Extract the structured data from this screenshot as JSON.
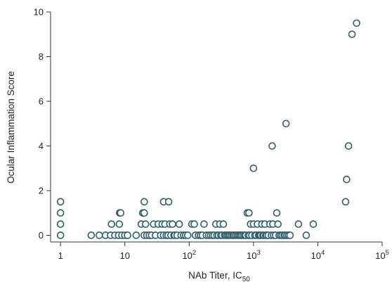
{
  "chart_data": {
    "type": "scatter",
    "title": "",
    "xlabel": "NAb Titer, IC",
    "xlabel_sub": "50",
    "ylabel": "Ocular Inflammation Score",
    "xscale": "log",
    "xlim": [
      0.7,
      100000
    ],
    "ylim": [
      -0.3,
      10
    ],
    "grid": false,
    "legend": "none",
    "marker_color": "#2e5f6b",
    "x_ticks": [
      {
        "value": 1,
        "label": "1"
      },
      {
        "value": 10,
        "label": "10"
      },
      {
        "value": 100,
        "base": "10",
        "exp": "2"
      },
      {
        "value": 1000,
        "base": "10",
        "exp": "3"
      },
      {
        "value": 10000,
        "base": "10",
        "exp": "4"
      },
      {
        "value": 100000,
        "base": "10",
        "exp": "5"
      }
    ],
    "y_ticks": [
      0,
      2,
      4,
      6,
      8,
      10
    ],
    "points": [
      {
        "x": 1,
        "y": 0
      },
      {
        "x": 1,
        "y": 0.5
      },
      {
        "x": 1,
        "y": 1
      },
      {
        "x": 1,
        "y": 1.5
      },
      {
        "x": 3,
        "y": 0
      },
      {
        "x": 4,
        "y": 0
      },
      {
        "x": 5,
        "y": 0
      },
      {
        "x": 6,
        "y": 0
      },
      {
        "x": 6.2,
        "y": 0.5
      },
      {
        "x": 7,
        "y": 0
      },
      {
        "x": 8,
        "y": 0
      },
      {
        "x": 8.2,
        "y": 0.5
      },
      {
        "x": 8.3,
        "y": 1
      },
      {
        "x": 8.6,
        "y": 1
      },
      {
        "x": 9,
        "y": 0
      },
      {
        "x": 10,
        "y": 0
      },
      {
        "x": 11,
        "y": 0
      },
      {
        "x": 15,
        "y": 0
      },
      {
        "x": 18,
        "y": 0.5
      },
      {
        "x": 19,
        "y": 1
      },
      {
        "x": 20,
        "y": 1
      },
      {
        "x": 20,
        "y": 1.5
      },
      {
        "x": 20,
        "y": 0
      },
      {
        "x": 21,
        "y": 0.5
      },
      {
        "x": 22,
        "y": 0
      },
      {
        "x": 24,
        "y": 0
      },
      {
        "x": 26,
        "y": 0
      },
      {
        "x": 28,
        "y": 0.5
      },
      {
        "x": 30,
        "y": 0
      },
      {
        "x": 33,
        "y": 0.5
      },
      {
        "x": 36,
        "y": 0
      },
      {
        "x": 38,
        "y": 0.5
      },
      {
        "x": 40,
        "y": 1.5
      },
      {
        "x": 40,
        "y": 0
      },
      {
        "x": 42,
        "y": 0.5
      },
      {
        "x": 44,
        "y": 0
      },
      {
        "x": 47,
        "y": 0
      },
      {
        "x": 48,
        "y": 1.5
      },
      {
        "x": 50,
        "y": 0.5
      },
      {
        "x": 52,
        "y": 0
      },
      {
        "x": 55,
        "y": 0.5
      },
      {
        "x": 58,
        "y": 0
      },
      {
        "x": 60,
        "y": 0
      },
      {
        "x": 65,
        "y": 0
      },
      {
        "x": 70,
        "y": 0.5
      },
      {
        "x": 75,
        "y": 0
      },
      {
        "x": 82,
        "y": 0
      },
      {
        "x": 88,
        "y": 0
      },
      {
        "x": 95,
        "y": 0
      },
      {
        "x": 110,
        "y": 0.5
      },
      {
        "x": 120,
        "y": 0.5
      },
      {
        "x": 125,
        "y": 0
      },
      {
        "x": 140,
        "y": 0
      },
      {
        "x": 150,
        "y": 0
      },
      {
        "x": 160,
        "y": 0
      },
      {
        "x": 170,
        "y": 0.5
      },
      {
        "x": 185,
        "y": 0
      },
      {
        "x": 200,
        "y": 0
      },
      {
        "x": 215,
        "y": 0
      },
      {
        "x": 230,
        "y": 0
      },
      {
        "x": 245,
        "y": 0
      },
      {
        "x": 260,
        "y": 0.5
      },
      {
        "x": 270,
        "y": 0
      },
      {
        "x": 285,
        "y": 0
      },
      {
        "x": 300,
        "y": 0.5
      },
      {
        "x": 310,
        "y": 0
      },
      {
        "x": 325,
        "y": 0
      },
      {
        "x": 340,
        "y": 0.5
      },
      {
        "x": 355,
        "y": 0
      },
      {
        "x": 370,
        "y": 0
      },
      {
        "x": 390,
        "y": 0
      },
      {
        "x": 410,
        "y": 0
      },
      {
        "x": 430,
        "y": 0
      },
      {
        "x": 455,
        "y": 0
      },
      {
        "x": 480,
        "y": 0
      },
      {
        "x": 500,
        "y": 0
      },
      {
        "x": 530,
        "y": 0
      },
      {
        "x": 560,
        "y": 0
      },
      {
        "x": 590,
        "y": 0
      },
      {
        "x": 620,
        "y": 0
      },
      {
        "x": 650,
        "y": 0
      },
      {
        "x": 690,
        "y": 0
      },
      {
        "x": 730,
        "y": 0
      },
      {
        "x": 760,
        "y": 0
      },
      {
        "x": 800,
        "y": 1
      },
      {
        "x": 830,
        "y": 0
      },
      {
        "x": 850,
        "y": 1
      },
      {
        "x": 870,
        "y": 0
      },
      {
        "x": 900,
        "y": 0.5
      },
      {
        "x": 940,
        "y": 0
      },
      {
        "x": 1000,
        "y": 3
      },
      {
        "x": 1000,
        "y": 0.5
      },
      {
        "x": 1050,
        "y": 0
      },
      {
        "x": 1100,
        "y": 0
      },
      {
        "x": 1150,
        "y": 0.5
      },
      {
        "x": 1200,
        "y": 0
      },
      {
        "x": 1250,
        "y": 0
      },
      {
        "x": 1300,
        "y": 0
      },
      {
        "x": 1350,
        "y": 0.5
      },
      {
        "x": 1400,
        "y": 0
      },
      {
        "x": 1450,
        "y": 0
      },
      {
        "x": 1500,
        "y": 0.5
      },
      {
        "x": 1550,
        "y": 0
      },
      {
        "x": 1600,
        "y": 0
      },
      {
        "x": 1700,
        "y": 0
      },
      {
        "x": 1800,
        "y": 0.5
      },
      {
        "x": 1900,
        "y": 0
      },
      {
        "x": 1950,
        "y": 4
      },
      {
        "x": 2000,
        "y": 0.5
      },
      {
        "x": 2050,
        "y": 0
      },
      {
        "x": 2200,
        "y": 0
      },
      {
        "x": 2300,
        "y": 1
      },
      {
        "x": 2400,
        "y": 0.5
      },
      {
        "x": 2500,
        "y": 0
      },
      {
        "x": 2650,
        "y": 0
      },
      {
        "x": 2800,
        "y": 0
      },
      {
        "x": 3000,
        "y": 0
      },
      {
        "x": 3100,
        "y": 0
      },
      {
        "x": 3200,
        "y": 5
      },
      {
        "x": 3300,
        "y": 0
      },
      {
        "x": 3500,
        "y": 0
      },
      {
        "x": 3700,
        "y": 0
      },
      {
        "x": 5000,
        "y": 0.5
      },
      {
        "x": 6600,
        "y": 0
      },
      {
        "x": 8500,
        "y": 0.5
      },
      {
        "x": 27000,
        "y": 1.5
      },
      {
        "x": 28000,
        "y": 2.5
      },
      {
        "x": 30000,
        "y": 4
      },
      {
        "x": 34000,
        "y": 9
      },
      {
        "x": 40000,
        "y": 9.5
      }
    ]
  }
}
